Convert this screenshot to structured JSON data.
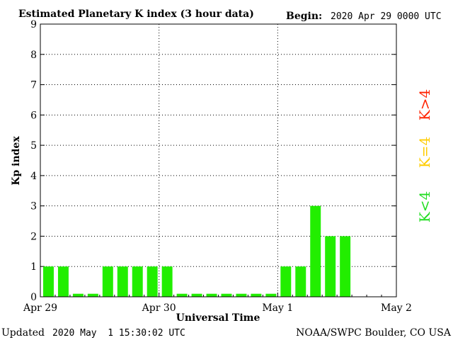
{
  "title": "Estimated Planetary K index (3 hour data)",
  "begin_label": "Begin:",
  "begin_value": "2020 Apr 29 0000 UTC",
  "footer_left_label": "Updated",
  "footer_left_value": "2020 May  1 15:30:02 UTC",
  "footer_right": "NOAA/SWPC Boulder, CO USA",
  "legend": [
    {
      "text": "K>4",
      "color": "#ff2200"
    },
    {
      "text": "K=4",
      "color": "#ffcc00"
    },
    {
      "text": "K<4",
      "color": "#22dd22"
    }
  ],
  "chart_data": {
    "type": "bar",
    "title": "Estimated Planetary K index (3 hour data)",
    "xlabel": "Universal Time",
    "ylabel": "Kp index",
    "ylim": [
      0,
      9
    ],
    "yticks": [
      "0",
      "1",
      "2",
      "3",
      "4",
      "5",
      "6",
      "7",
      "8",
      "9"
    ],
    "xticks": [
      "Apr 29",
      "Apr 30",
      "May 1",
      "May 2"
    ],
    "grid": true,
    "bar_color": "#22ee00",
    "min_bar_height": 0.1,
    "slots_per_axis": 24,
    "values": [
      1,
      1,
      0,
      0,
      1,
      1,
      1,
      1,
      1,
      0,
      0,
      0,
      0,
      0,
      0,
      0,
      1,
      1,
      3,
      2,
      2
    ]
  }
}
